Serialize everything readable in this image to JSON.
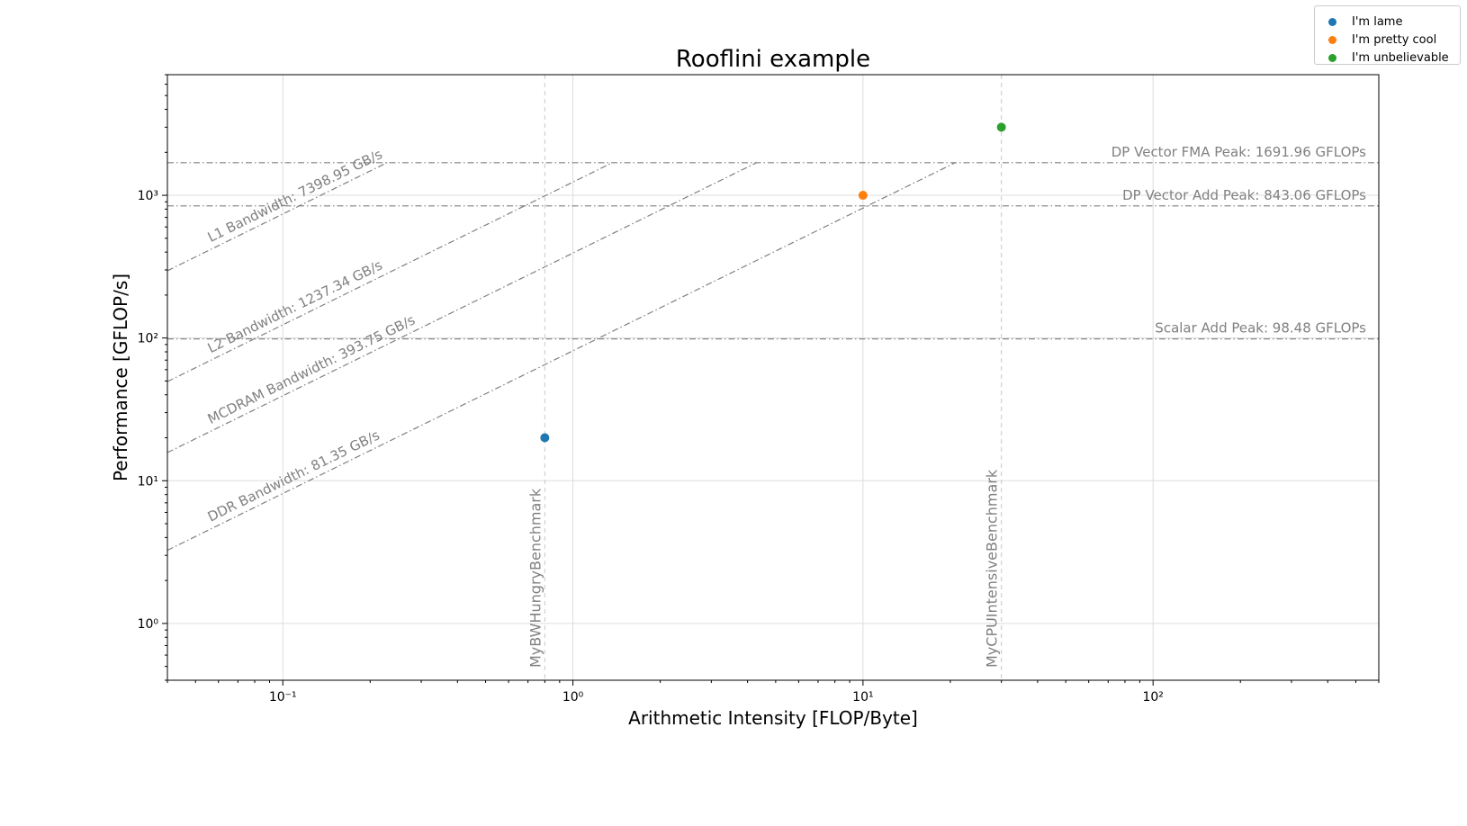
{
  "chart_data": {
    "type": "scatter",
    "title": "Rooflini example",
    "xlabel": "Arithmetic Intensity [FLOP/Byte]",
    "ylabel": "Performance [GFLOP/s]",
    "xscale": "log",
    "yscale": "log",
    "xlim": [
      0.04,
      600
    ],
    "ylim": [
      0.4,
      7000
    ],
    "grid": true,
    "legend_position": "top-right",
    "x_ticks": [
      {
        "value": 0.1,
        "label": "10⁻¹"
      },
      {
        "value": 1,
        "label": "10⁰"
      },
      {
        "value": 10,
        "label": "10¹"
      },
      {
        "value": 100,
        "label": "10²"
      }
    ],
    "y_ticks": [
      {
        "value": 1,
        "label": "10⁰"
      },
      {
        "value": 10,
        "label": "10¹"
      },
      {
        "value": 100,
        "label": "10²"
      },
      {
        "value": 1000,
        "label": "10³"
      }
    ],
    "series": [
      {
        "name": "I'm lame",
        "color": "#1f77b4",
        "points": [
          {
            "x": 0.8,
            "y": 20
          }
        ]
      },
      {
        "name": "I'm pretty cool",
        "color": "#ff7f0e",
        "points": [
          {
            "x": 10,
            "y": 1000
          }
        ]
      },
      {
        "name": "I'm unbelievable",
        "color": "#2ca02c",
        "points": [
          {
            "x": 30,
            "y": 3000
          }
        ]
      }
    ],
    "compute_roofs": [
      {
        "label": "DP Vector FMA Peak: 1691.96 GFLOPs",
        "value": 1691.96
      },
      {
        "label": "DP Vector Add Peak: 843.06 GFLOPs",
        "value": 843.06
      },
      {
        "label": "Scalar Add Peak: 98.48 GFLOPs",
        "value": 98.48
      }
    ],
    "bandwidth_roofs": [
      {
        "label": "L1 Bandwidth: 7398.95 GB/s",
        "value": 7398.95
      },
      {
        "label": "L2 Bandwidth: 1237.34 GB/s",
        "value": 1237.34
      },
      {
        "label": "MCDRAM Bandwidth: 393.75 GB/s",
        "value": 393.75
      },
      {
        "label": "DDR Bandwidth: 81.35 GB/s",
        "value": 81.35
      }
    ],
    "benchmarks": [
      {
        "label": "MyBWHungryBenchmark",
        "x": 0.8
      },
      {
        "label": "MyCPUIntensiveBenchmark",
        "x": 30
      }
    ],
    "line_color": "#808080",
    "text_color": "#808080"
  },
  "legend": {
    "items": [
      {
        "label": "I'm lame",
        "color": "#1f77b4"
      },
      {
        "label": "I'm pretty cool",
        "color": "#ff7f0e"
      },
      {
        "label": "I'm unbelievable",
        "color": "#2ca02c"
      }
    ]
  }
}
